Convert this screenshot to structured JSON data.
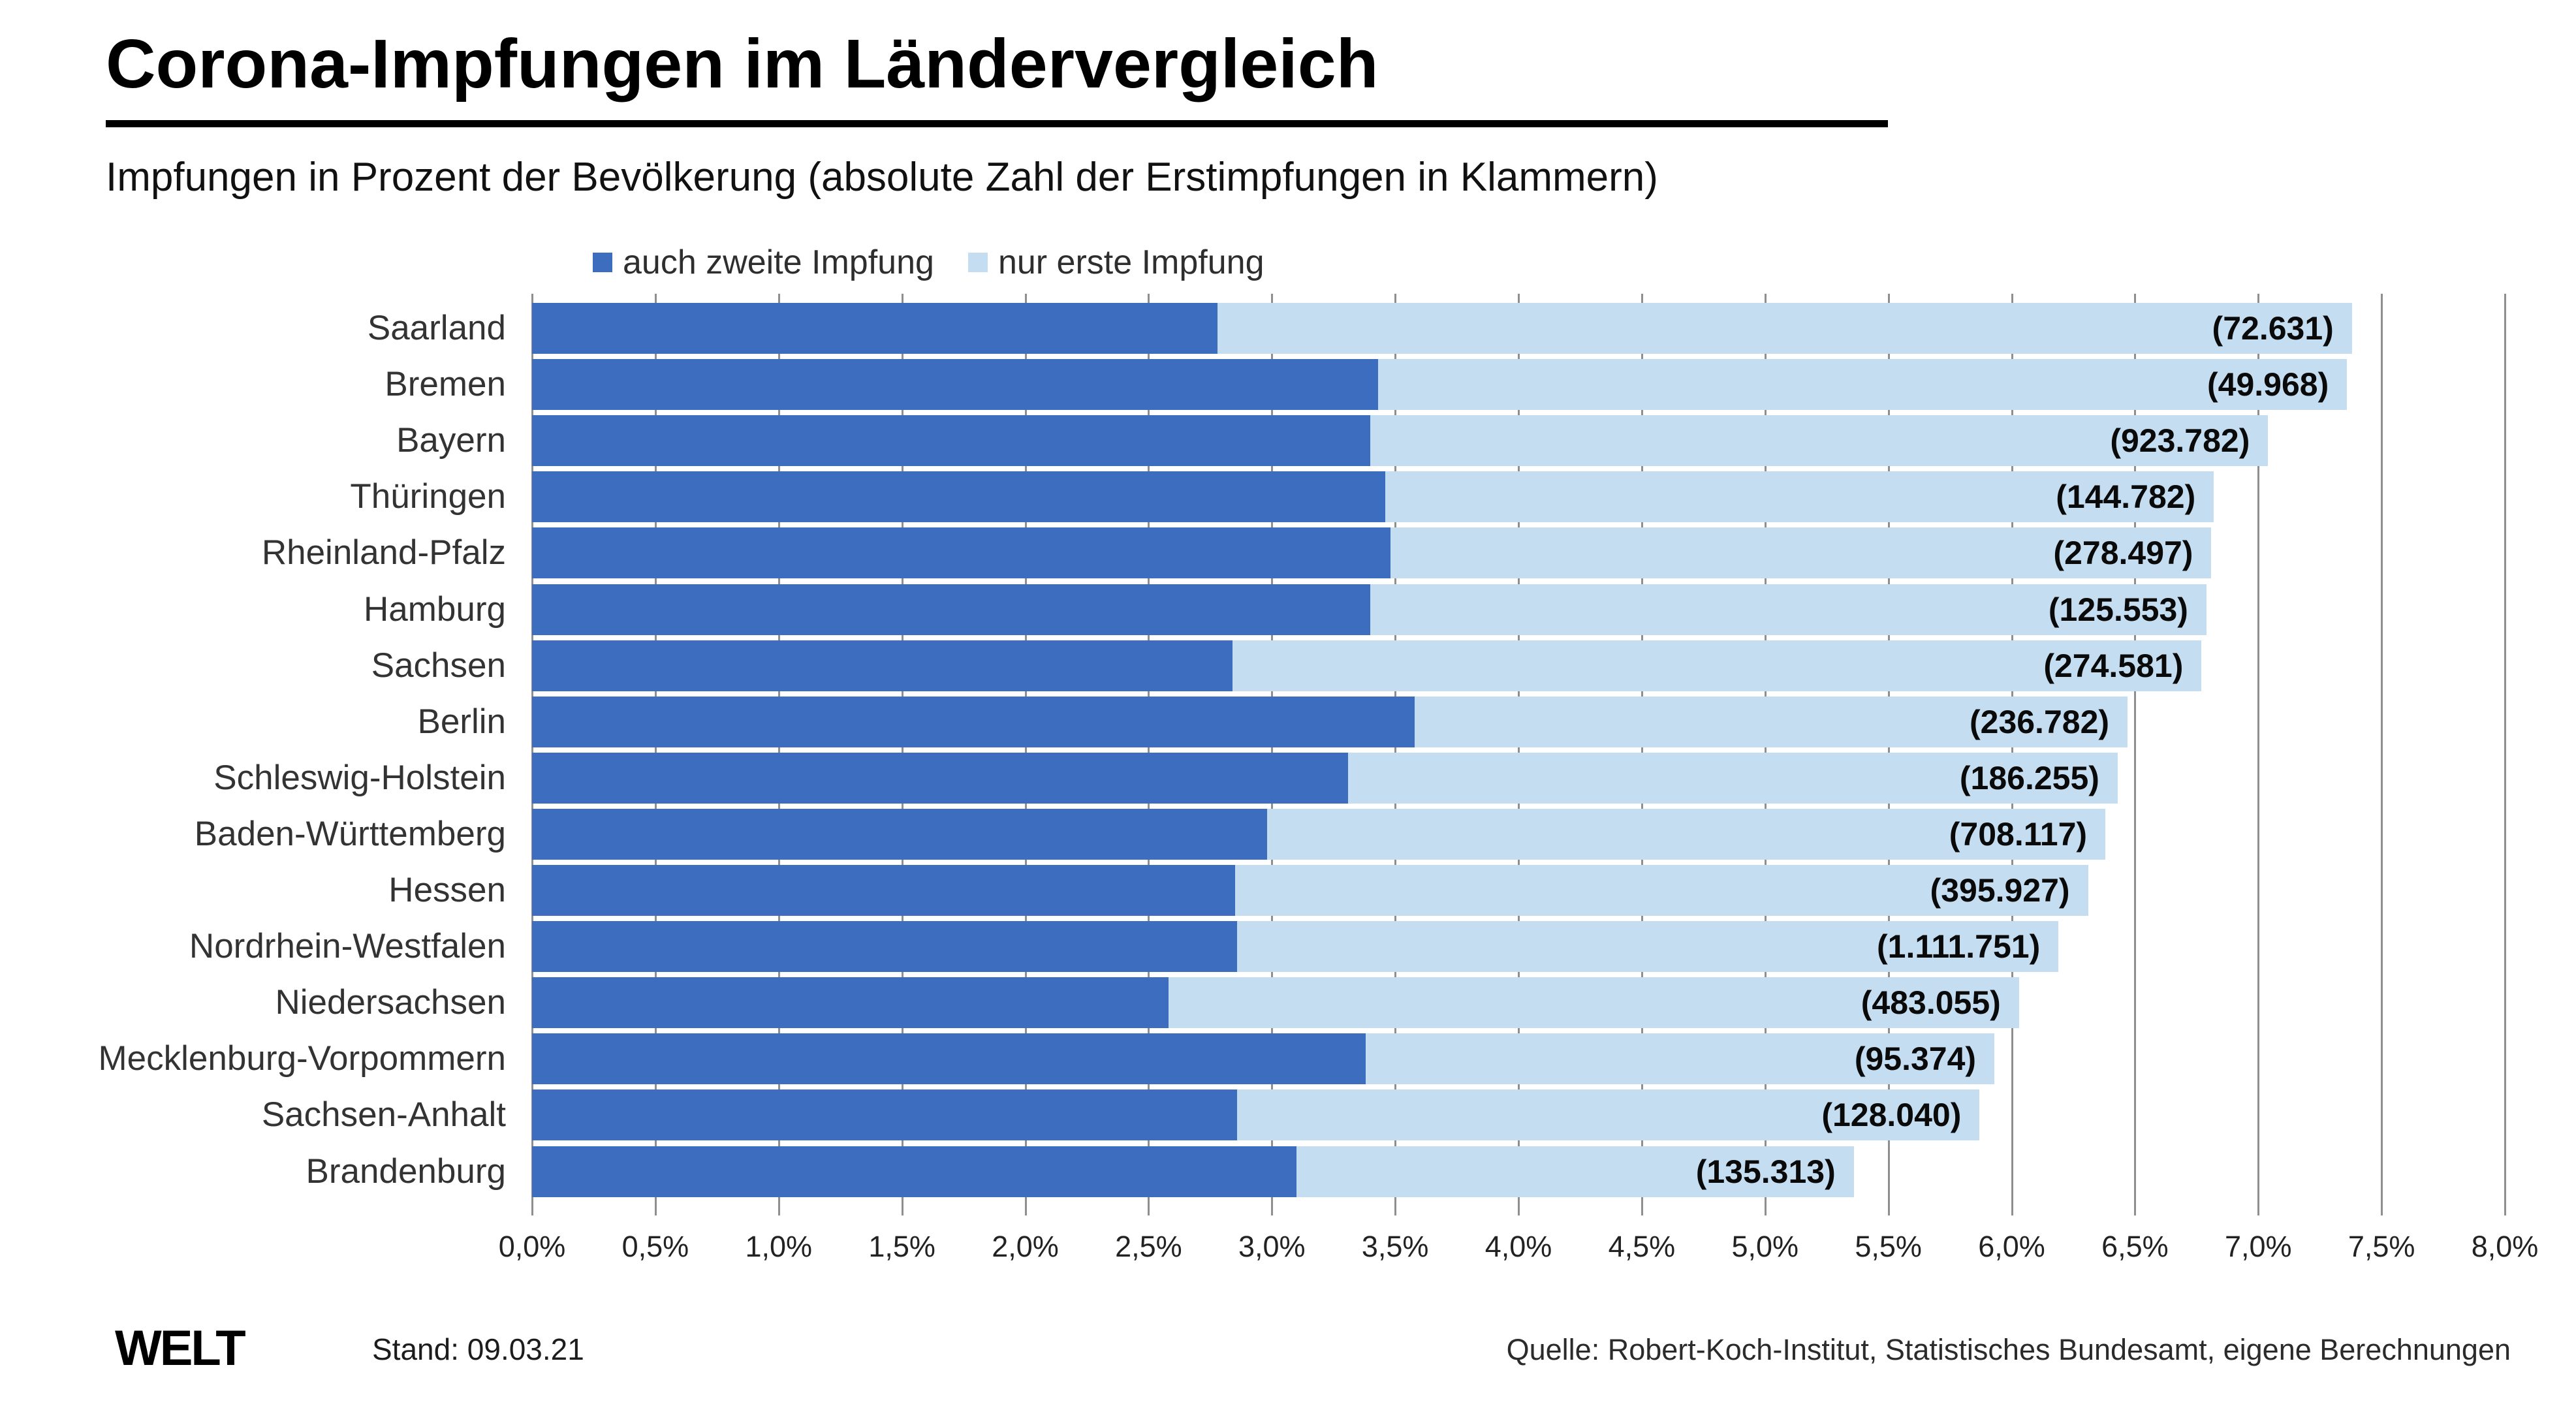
{
  "header": {
    "title": "Corona-Impfungen im Ländervergleich",
    "subtitle": "Impfungen in Prozent der Bevölkerung (absolute Zahl der Erstimpfungen in Klammern)"
  },
  "legend": [
    {
      "label": "auch zweite Impfung",
      "color": "#3d6dbf"
    },
    {
      "label": "nur erste Impfung",
      "color": "#c4ddf0"
    }
  ],
  "chart_data": {
    "type": "bar",
    "orientation": "horizontal",
    "stacked": true,
    "title": "Corona-Impfungen im Ländervergleich",
    "subtitle": "Impfungen in Prozent der Bevölkerung (absolute Zahl der Erstimpfungen in Klammern)",
    "categories": [
      "Saarland",
      "Bremen",
      "Bayern",
      "Thüringen",
      "Rheinland-Pfalz",
      "Hamburg",
      "Sachsen",
      "Berlin",
      "Schleswig-Holstein",
      "Baden-Württemberg",
      "Hessen",
      "Nordrhein-Westfalen",
      "Niedersachsen",
      "Mecklenburg-Vorpommern",
      "Sachsen-Anhalt",
      "Brandenburg"
    ],
    "series": [
      {
        "name": "auch zweite Impfung",
        "color": "#3d6dbf",
        "unit": "%",
        "values": [
          2.78,
          3.43,
          3.4,
          3.46,
          3.48,
          3.4,
          2.84,
          3.58,
          3.31,
          2.98,
          2.85,
          2.86,
          2.58,
          3.38,
          2.86,
          3.1
        ]
      },
      {
        "name": "nur erste Impfung",
        "color": "#c4ddf0",
        "unit": "%",
        "note": "Balkenlänge = Erstimpfungen gesamt in Prozent der Bevölkerung",
        "values": [
          7.38,
          7.36,
          7.04,
          6.82,
          6.81,
          6.79,
          6.77,
          6.47,
          6.43,
          6.38,
          6.31,
          6.19,
          6.03,
          5.93,
          5.87,
          5.36
        ]
      }
    ],
    "value_labels": [
      "(72.631)",
      "(49.968)",
      "(923.782)",
      "(144.782)",
      "(278.497)",
      "(125.553)",
      "(274.581)",
      "(236.782)",
      "(186.255)",
      "(708.117)",
      "(395.927)",
      "(1.111.751)",
      "(483.055)",
      "(95.374)",
      "(128.040)",
      "(135.313)"
    ],
    "xlim": [
      0,
      8
    ],
    "tick_step": 0.5,
    "tick_labels": [
      "0,0%",
      "0,5%",
      "1,0%",
      "1,5%",
      "2,0%",
      "2,5%",
      "3,0%",
      "3,5%",
      "4,0%",
      "4,5%",
      "5,0%",
      "5,5%",
      "6,0%",
      "6,5%",
      "7,0%",
      "7,5%",
      "8,0%"
    ],
    "grid": true,
    "legend_position": "top"
  },
  "footer": {
    "brand": "WELT",
    "stand": "Stand:  09.03.21",
    "source": "Quelle: Robert-Koch-Institut, Statistisches Bundesamt, eigene Berechnungen"
  },
  "colors": {
    "second_dose": "#3d6dbf",
    "first_dose": "#c4ddf0",
    "gridline": "#8f8f8f",
    "title": "#000000",
    "text": "#333333"
  }
}
